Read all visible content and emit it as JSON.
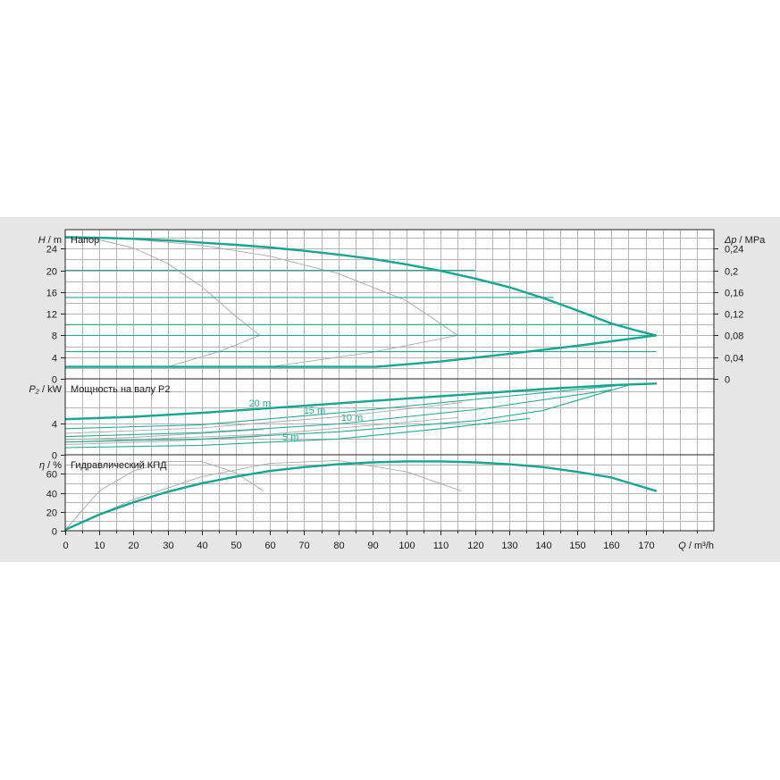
{
  "colors": {
    "main": "#17a58f",
    "thin": "#2aa995",
    "gray": "#aaaaaa"
  },
  "chart_data": [
    {
      "type": "line",
      "title": "Напор",
      "ylabel_italic": "H",
      "ylabel_unit": " / m",
      "right_label_italic": "Δp",
      "right_label_unit": " / MPa",
      "xlim": [
        0,
        190
      ],
      "ylim": [
        0,
        27.5
      ],
      "yticks": [
        0,
        4,
        8,
        12,
        16,
        20,
        24
      ],
      "ytick_labels": [
        "0",
        "4",
        "8",
        "12",
        "16",
        "20",
        "24"
      ],
      "right_ticks": [
        0,
        4,
        8,
        12,
        16,
        20,
        24
      ],
      "right_tick_labels": [
        "0",
        "0,04",
        "0,08",
        "0,12",
        "0,16",
        "0,2",
        "0,24"
      ],
      "grid": true,
      "series": [
        {
          "style": "main",
          "x": [
            0,
            10,
            20,
            30,
            40,
            50,
            60,
            70,
            80,
            90,
            100,
            110,
            120,
            130,
            140,
            150,
            160,
            168,
            173
          ],
          "y": [
            26.1,
            26.0,
            25.8,
            25.5,
            25.1,
            24.7,
            24.2,
            23.6,
            22.9,
            22.1,
            21.1,
            19.9,
            18.5,
            16.9,
            14.9,
            12.6,
            10.2,
            8.8,
            8.0
          ]
        },
        {
          "style": "main",
          "x": [
            0,
            30,
            60,
            91,
            110,
            130,
            150,
            173
          ],
          "y": [
            2.2,
            2.2,
            2.2,
            2.2,
            3.2,
            4.6,
            6.1,
            8.0
          ]
        },
        {
          "style": "thin",
          "x": [
            0,
            173
          ],
          "y": [
            8.0,
            8.0
          ]
        },
        {
          "style": "thin",
          "x": [
            0,
            120
          ],
          "y": [
            20,
            20
          ]
        },
        {
          "style": "thin",
          "x": [
            0,
            143
          ],
          "y": [
            15,
            15
          ]
        },
        {
          "style": "thin",
          "x": [
            0,
            165
          ],
          "y": [
            10,
            10
          ]
        },
        {
          "style": "thin",
          "x": [
            0,
            173
          ],
          "y": [
            5,
            5
          ]
        },
        {
          "style": "gray",
          "x": [
            0,
            10,
            20,
            30,
            40,
            50,
            57
          ],
          "y": [
            26.1,
            25.6,
            24.1,
            21.3,
            17.0,
            11.5,
            8.0
          ]
        },
        {
          "style": "gray",
          "x": [
            0,
            20,
            40,
            60,
            80,
            100,
            115
          ],
          "y": [
            26.1,
            25.7,
            24.6,
            22.6,
            19.4,
            14.4,
            8.0
          ]
        },
        {
          "style": "gray",
          "x": [
            30,
            45,
            57
          ],
          "y": [
            2.2,
            5.0,
            8.0
          ]
        },
        {
          "style": "gray",
          "x": [
            60,
            90,
            115
          ],
          "y": [
            2.2,
            4.9,
            8.0
          ]
        }
      ]
    },
    {
      "type": "line",
      "title": "Мощность на валу P2",
      "ylabel_italic": "P₂",
      "ylabel_unit": " / kW",
      "xlim": [
        0,
        190
      ],
      "ylim": [
        0,
        9.6
      ],
      "yticks": [
        0,
        4
      ],
      "ytick_labels": [
        "0",
        "4"
      ],
      "grid": true,
      "series": [
        {
          "style": "main",
          "x": [
            0,
            20,
            40,
            60,
            80,
            100,
            120,
            140,
            160,
            173
          ],
          "y": [
            4.5,
            4.8,
            5.3,
            5.9,
            6.5,
            7.1,
            7.7,
            8.3,
            8.8,
            9.0
          ]
        },
        {
          "style": "thin",
          "x": [
            0,
            40,
            80,
            120,
            168
          ],
          "y": [
            3.3,
            3.8,
            5.3,
            7.0,
            9.0
          ]
        },
        {
          "style": "thin",
          "x": [
            0,
            40,
            80,
            120,
            160
          ],
          "y": [
            2.3,
            2.8,
            3.9,
            5.7,
            8.2
          ]
        },
        {
          "style": "thin",
          "x": [
            0,
            40,
            80,
            120,
            140,
            165
          ],
          "y": [
            1.6,
            2.0,
            2.9,
            4.3,
            5.6,
            8.8
          ]
        },
        {
          "style": "thin",
          "x": [
            0,
            40,
            80,
            110,
            136
          ],
          "y": [
            0.9,
            1.2,
            2.0,
            3.3,
            4.6
          ]
        },
        {
          "style": "gray",
          "x": [
            0,
            20,
            40,
            58
          ],
          "y": [
            1.9,
            2.2,
            2.7,
            3.2
          ]
        },
        {
          "style": "gray",
          "x": [
            0,
            40,
            80,
            116
          ],
          "y": [
            2.7,
            3.4,
            4.8,
            6.6
          ]
        },
        {
          "style": "gray",
          "x": [
            0,
            30,
            57
          ],
          "y": [
            1.3,
            1.7,
            2.3
          ]
        },
        {
          "style": "gray",
          "x": [
            0,
            60,
            115
          ],
          "y": [
            1.6,
            2.6,
            4.7
          ]
        }
      ],
      "annotations": [
        {
          "text": "20 m",
          "x": 57,
          "y": 6.1
        },
        {
          "text": "15 m",
          "x": 73,
          "y": 5.2
        },
        {
          "text": "10 m",
          "x": 84,
          "y": 4.3
        },
        {
          "text": "5 m",
          "x": 66,
          "y": 1.8
        }
      ]
    },
    {
      "type": "line",
      "title": "Гидравлический КПД",
      "ylabel_italic": "η",
      "ylabel_unit": " / %",
      "xlabel_italic": "Q",
      "xlabel_unit": " / m³/h",
      "xlim": [
        0,
        190
      ],
      "ylim": [
        0,
        80
      ],
      "yticks": [
        0,
        20,
        40,
        60
      ],
      "ytick_labels": [
        "0",
        "20",
        "40",
        "60"
      ],
      "xticks": [
        0,
        10,
        20,
        30,
        40,
        50,
        60,
        70,
        80,
        90,
        100,
        110,
        120,
        130,
        140,
        150,
        160,
        170
      ],
      "xtick_labels": [
        "0",
        "10",
        "20",
        "30",
        "40",
        "50",
        "60",
        "70",
        "80",
        "90",
        "100",
        "110",
        "120",
        "130",
        "140",
        "150",
        "160",
        "170"
      ],
      "grid": true,
      "series": [
        {
          "style": "main",
          "x": [
            0,
            10,
            20,
            30,
            40,
            50,
            60,
            70,
            80,
            90,
            100,
            110,
            120,
            130,
            140,
            150,
            160,
            173
          ],
          "y": [
            1,
            17,
            30,
            41,
            50,
            57,
            63,
            67,
            70,
            72,
            73,
            73,
            72,
            70,
            67,
            62,
            56,
            42
          ]
        },
        {
          "style": "gray",
          "x": [
            0,
            10,
            20,
            30,
            40,
            50,
            58
          ],
          "y": [
            1,
            42,
            63,
            73,
            73,
            61,
            42
          ]
        },
        {
          "style": "gray",
          "x": [
            0,
            20,
            40,
            60,
            80,
            100,
            116
          ],
          "y": [
            1,
            33,
            57,
            71,
            74,
            62,
            42
          ]
        }
      ]
    }
  ]
}
